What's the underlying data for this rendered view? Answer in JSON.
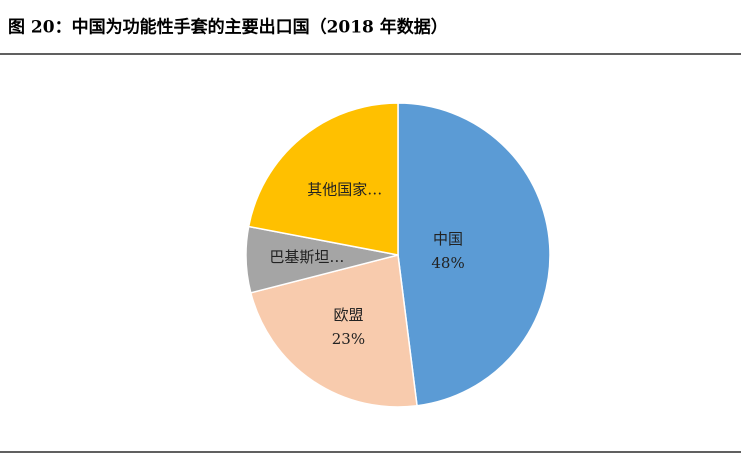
{
  "chart_data": {
    "type": "pie",
    "title": "图 20：中国为功能性手套的主要出口国（2018 年数据）",
    "categories": [
      "中国",
      "欧盟",
      "巴基斯坦…",
      "其他国家…"
    ],
    "values": [
      48,
      23,
      7,
      22
    ],
    "value_labels": [
      "48%",
      "23%",
      null,
      null
    ],
    "colors": [
      "#5b9bd5",
      "#f8cbad",
      "#a5a5a5",
      "#ffc000"
    ]
  }
}
